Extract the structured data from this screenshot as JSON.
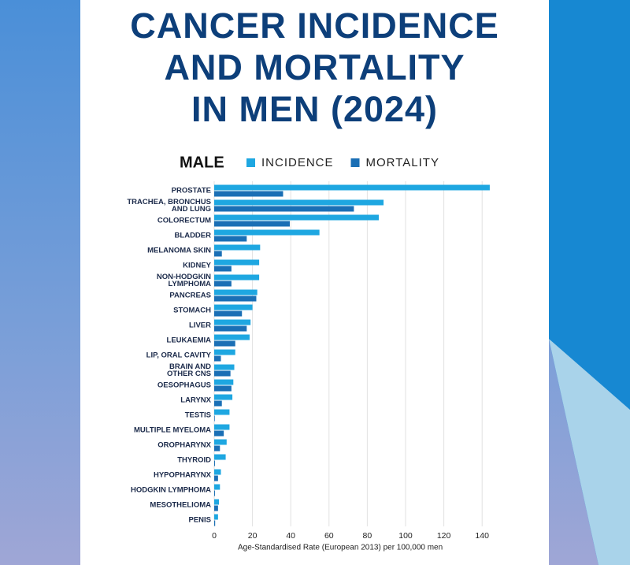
{
  "chart_data": {
    "type": "bar",
    "orientation": "horizontal",
    "title": "CANCER INCIDENCE\nAND MORTALITY\nIN MEN (2024)",
    "legend_title": "MALE",
    "x_label": "Age-Standardised Rate (European 2013) per 100,000 men",
    "categories": [
      "PROSTATE",
      "TRACHEA, BRONCHUS\nAND LUNG",
      "COLORECTUM",
      "BLADDER",
      "MELANOMA SKIN",
      "KIDNEY",
      "NON-HODGKIN\nLYMPHOMA",
      "PANCREAS",
      "STOMACH",
      "LIVER",
      "LEUKAEMIA",
      "LIP, ORAL CAVITY",
      "BRAIN AND\nOTHER CNS",
      "OESOPHAGUS",
      "LARYNX",
      "TESTIS",
      "MULTIPLE MYELOMA",
      "OROPHARYNX",
      "THYROID",
      "HYPOPHARYNX",
      "HODGKIN LYMPHOMA",
      "MESOTHELIOMA",
      "PENIS"
    ],
    "series": [
      {
        "name": "INCIDENCE",
        "color": "#1ea7e1",
        "values": [
          144,
          88.5,
          86,
          55,
          24,
          23.5,
          23.5,
          22.5,
          20,
          19,
          18.5,
          11,
          10.5,
          10,
          9.5,
          8,
          8,
          6.5,
          6,
          3.5,
          3,
          2.5,
          2
        ]
      },
      {
        "name": "MORTALITY",
        "color": "#1a6fb5",
        "values": [
          36,
          73,
          39.5,
          17,
          4,
          9,
          9,
          22,
          14.5,
          17,
          11,
          3.5,
          8.5,
          9,
          4,
          0.3,
          5,
          3,
          0.4,
          2,
          0.4,
          2,
          0.5
        ]
      }
    ],
    "xlim": [
      0,
      150
    ],
    "xticks": [
      0,
      20,
      40,
      60,
      80,
      100,
      120,
      140
    ],
    "grid": true
  }
}
